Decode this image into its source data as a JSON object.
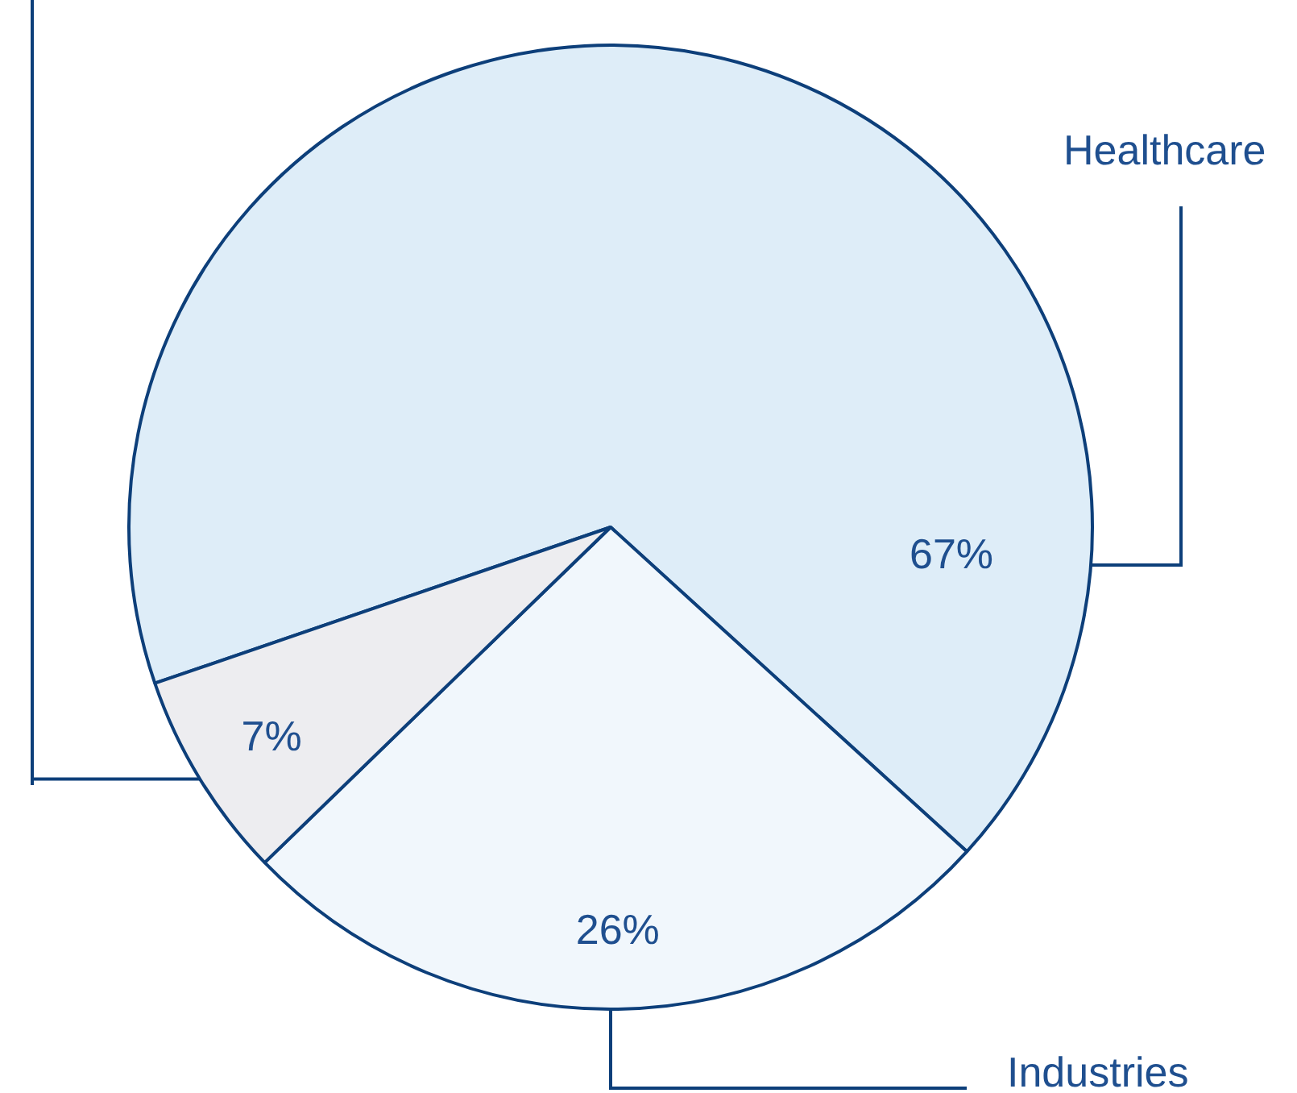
{
  "chart_data": {
    "type": "pie",
    "categories": [
      "Healthcare",
      "Industries",
      null
    ],
    "values": [
      67,
      26,
      7
    ],
    "value_labels": [
      "67%",
      "26%",
      "7%"
    ],
    "colors": [
      "#deedf8",
      "#f1f7fc",
      "#ededf0"
    ]
  }
}
